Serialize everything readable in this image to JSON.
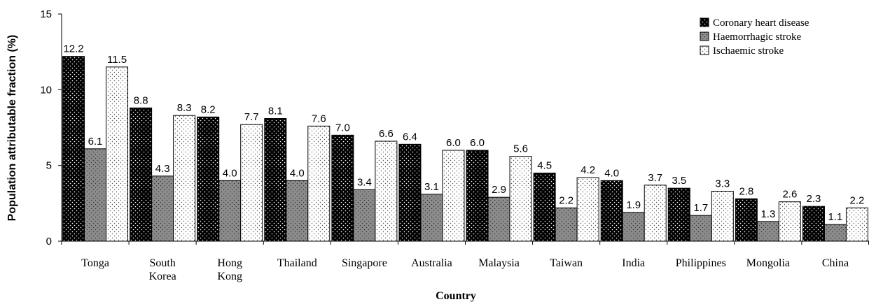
{
  "chart_data": {
    "type": "bar",
    "xlabel": "Country",
    "ylabel": "Population attributable fraction (%)",
    "ylim": [
      0,
      15
    ],
    "yticks": [
      0,
      5,
      10,
      15
    ],
    "grid": false,
    "legend_position": "top-right",
    "categories": [
      [
        "Tonga"
      ],
      [
        "South",
        "Korea"
      ],
      [
        "Hong",
        "Kong"
      ],
      [
        "Thailand"
      ],
      [
        "Singapore"
      ],
      [
        "Australia"
      ],
      [
        "Malaysia"
      ],
      [
        "Taiwan"
      ],
      [
        "India"
      ],
      [
        "Philippines"
      ],
      [
        "Mongolia"
      ],
      [
        "China"
      ]
    ],
    "series": [
      {
        "name": "Coronary heart disease",
        "pattern": "black-dotted",
        "values": [
          12.2,
          8.8,
          8.2,
          8.1,
          7.0,
          6.4,
          6.0,
          4.5,
          4.0,
          3.5,
          2.8,
          2.3
        ],
        "labels": [
          "12.2",
          "8.8",
          "8.2",
          "8.1",
          "7.0",
          "6.4",
          "6.0",
          "4.5",
          "4.0",
          "3.5",
          "2.8",
          "2.3"
        ]
      },
      {
        "name": "Haemorrhagic stroke",
        "pattern": "gray-dotted",
        "values": [
          6.1,
          4.3,
          4.0,
          4.0,
          3.4,
          3.1,
          2.9,
          2.2,
          1.9,
          1.7,
          1.3,
          1.1
        ],
        "labels": [
          "6.1",
          "4.3",
          "4.0",
          "4.0",
          "3.4",
          "3.1",
          "2.9",
          "2.2",
          "1.9",
          "1.7",
          "1.3",
          "1.1"
        ]
      },
      {
        "name": "Ischaemic stroke",
        "pattern": "white-dotted",
        "values": [
          11.5,
          8.3,
          7.7,
          7.6,
          6.6,
          6.0,
          5.6,
          4.2,
          3.7,
          3.3,
          2.6,
          2.2
        ],
        "labels": [
          "11.5",
          "8.3",
          "7.7",
          "7.6",
          "6.6",
          "6.0",
          "5.6",
          "4.2",
          "3.7",
          "3.3",
          "2.6",
          "2.2"
        ]
      }
    ],
    "colors": {
      "black-dotted": "#000000",
      "gray-dotted": "#8c8c8c",
      "white-dotted": "#ffffff"
    }
  }
}
